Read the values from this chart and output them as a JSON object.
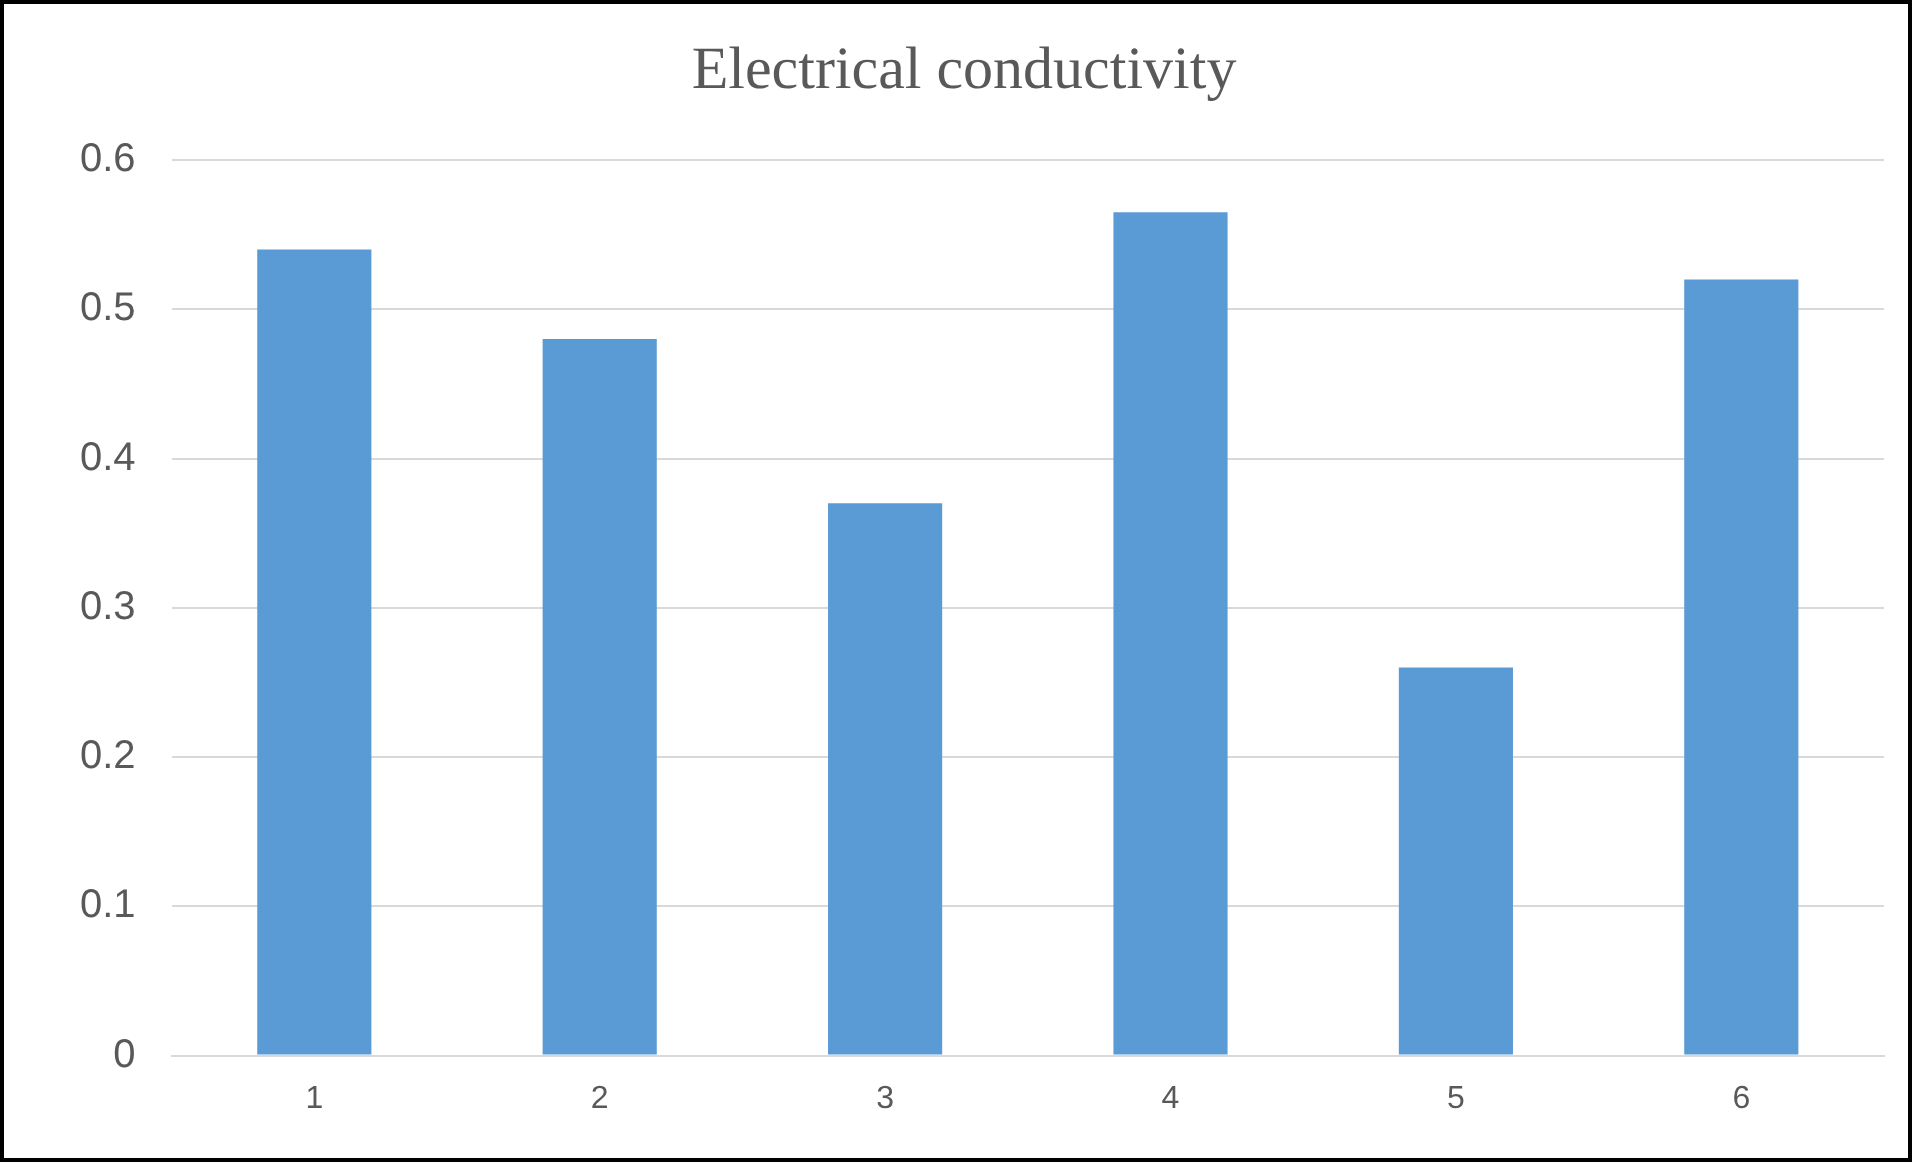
{
  "chart_data": {
    "type": "bar",
    "title": "Electrical conductivity",
    "categories": [
      "1",
      "2",
      "3",
      "4",
      "5",
      "6"
    ],
    "values": [
      0.54,
      0.48,
      0.37,
      0.565,
      0.26,
      0.52
    ],
    "color": "#5b9bd5",
    "ylim": [
      0,
      0.6
    ],
    "yticks": [
      0,
      0.1,
      0.2,
      0.3,
      0.4,
      0.5,
      0.6
    ],
    "grid": "y",
    "legend": false
  }
}
